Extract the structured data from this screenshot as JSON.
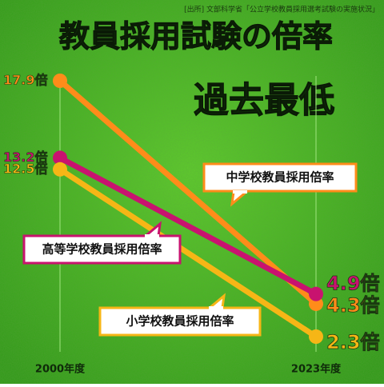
{
  "chart_data": {
    "type": "line",
    "title": [
      "教員採用試験の倍率",
      "過去最低"
    ],
    "source": "[出所] 文部科学省「公立学校教員採用選考試験の実施状況」",
    "categories": [
      "2000年度",
      "2023年度"
    ],
    "grid": true,
    "series": [
      {
        "name": "中学校教員採用倍率",
        "color": "#ff8c1a",
        "values": [
          17.9,
          4.3
        ],
        "value_labels": [
          "17.9倍",
          "4.3倍"
        ]
      },
      {
        "name": "高等学校教員採用倍率",
        "color": "#c8136f",
        "values": [
          13.2,
          4.9
        ],
        "value_labels": [
          "13.2倍",
          "4.9倍"
        ]
      },
      {
        "name": "小学校教員採用倍率",
        "color": "#f6b616",
        "values": [
          12.5,
          2.3
        ],
        "value_labels": [
          "12.5倍",
          "2.3倍"
        ]
      }
    ]
  }
}
